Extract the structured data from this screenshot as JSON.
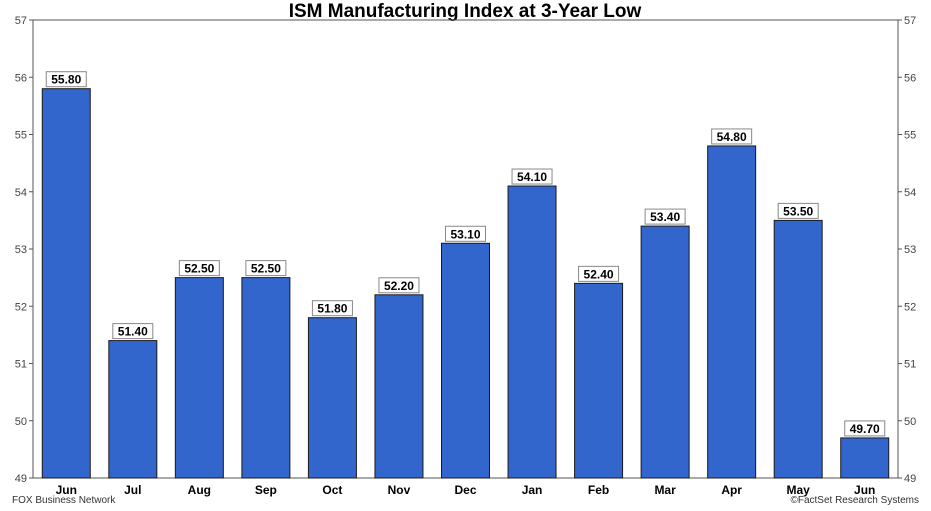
{
  "chart_data": {
    "type": "bar",
    "title": "ISM Manufacturing Index at 3-Year Low",
    "categories": [
      "Jun",
      "Jul",
      "Aug",
      "Sep",
      "Oct",
      "Nov",
      "Dec",
      "Jan",
      "Feb",
      "Mar",
      "Apr",
      "May",
      "Jun"
    ],
    "values": [
      55.8,
      51.4,
      52.5,
      52.5,
      51.8,
      52.2,
      53.1,
      54.1,
      52.4,
      53.4,
      54.8,
      53.5,
      49.7
    ],
    "value_labels": [
      "55.80",
      "51.40",
      "52.50",
      "52.50",
      "51.80",
      "52.20",
      "53.10",
      "54.10",
      "52.40",
      "53.40",
      "54.80",
      "53.50",
      "49.70"
    ],
    "ylim": [
      49,
      57
    ],
    "yticks": [
      49,
      50,
      51,
      52,
      53,
      54,
      55,
      56,
      57
    ],
    "xlabel": "",
    "ylabel": "",
    "grid": false,
    "y_axis_both_sides": true,
    "bar_color": "#3366cc"
  },
  "footer": {
    "left_source": "FOX Business Network",
    "right_source": "©FactSet Research Systems"
  }
}
